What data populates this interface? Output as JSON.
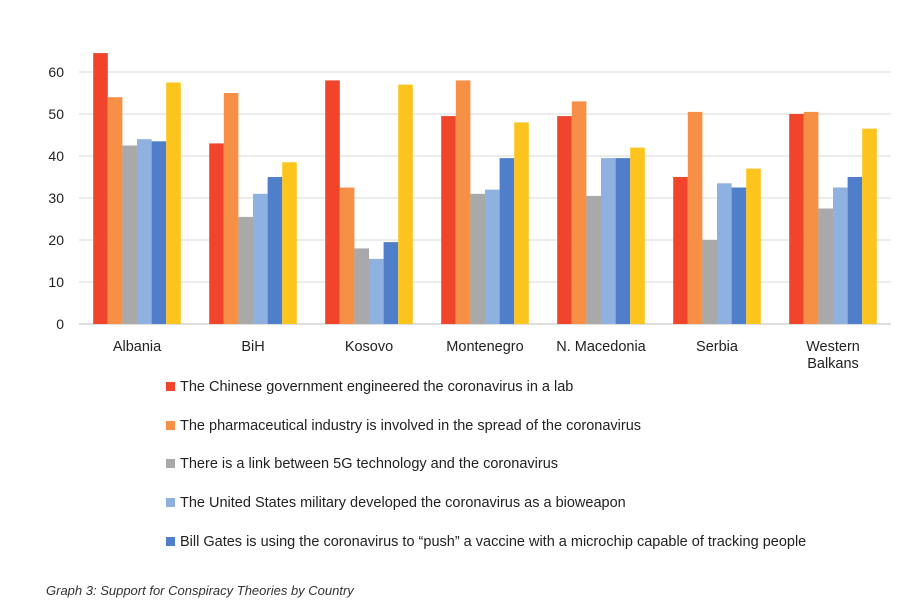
{
  "chart_data": {
    "type": "bar",
    "categories": [
      "Albania",
      "BiH",
      "Kosovo",
      "Montenegro",
      "N. Macedonia",
      "Serbia",
      "Western Balkans"
    ],
    "series": [
      {
        "name": "The Chinese government engineered the coronavirus in a lab",
        "color": "#f0452a",
        "values": [
          64.5,
          43,
          58,
          49.5,
          49.5,
          35,
          50
        ]
      },
      {
        "name": "The pharmaceutical industry is involved in the spread of the coronavirus",
        "color": "#f79046",
        "values": [
          54,
          55,
          32.5,
          58,
          53,
          50.5,
          50.5
        ]
      },
      {
        "name": "There is a link between 5G technology and the coronavirus",
        "color": "#a9a9a9",
        "values": [
          42.5,
          25.5,
          18,
          31,
          30.5,
          20,
          27.5
        ]
      },
      {
        "name": "The United States military developed the coronavirus as a bioweapon",
        "color": "#8eb1e0",
        "values": [
          44,
          31,
          15.5,
          32,
          39.5,
          33.5,
          32.5
        ]
      },
      {
        "name": "Bill Gates is using the coronavirus to “push” a vaccine with a microchip capable of tracking people",
        "color": "#4f7fcb",
        "values": [
          43.5,
          35,
          19.5,
          39.5,
          39.5,
          32.5,
          35
        ]
      },
      {
        "name": "",
        "color": "#fcc41c",
        "values": [
          57.5,
          38.5,
          57,
          48,
          42,
          37,
          46.5
        ]
      }
    ],
    "yticks": [
      0,
      10,
      20,
      30,
      40,
      50,
      60
    ],
    "ylim": [
      0,
      65
    ],
    "grid": true,
    "legend": "bottom",
    "caption": "Graph 3: Support for Conspiracy Theories by Country"
  }
}
